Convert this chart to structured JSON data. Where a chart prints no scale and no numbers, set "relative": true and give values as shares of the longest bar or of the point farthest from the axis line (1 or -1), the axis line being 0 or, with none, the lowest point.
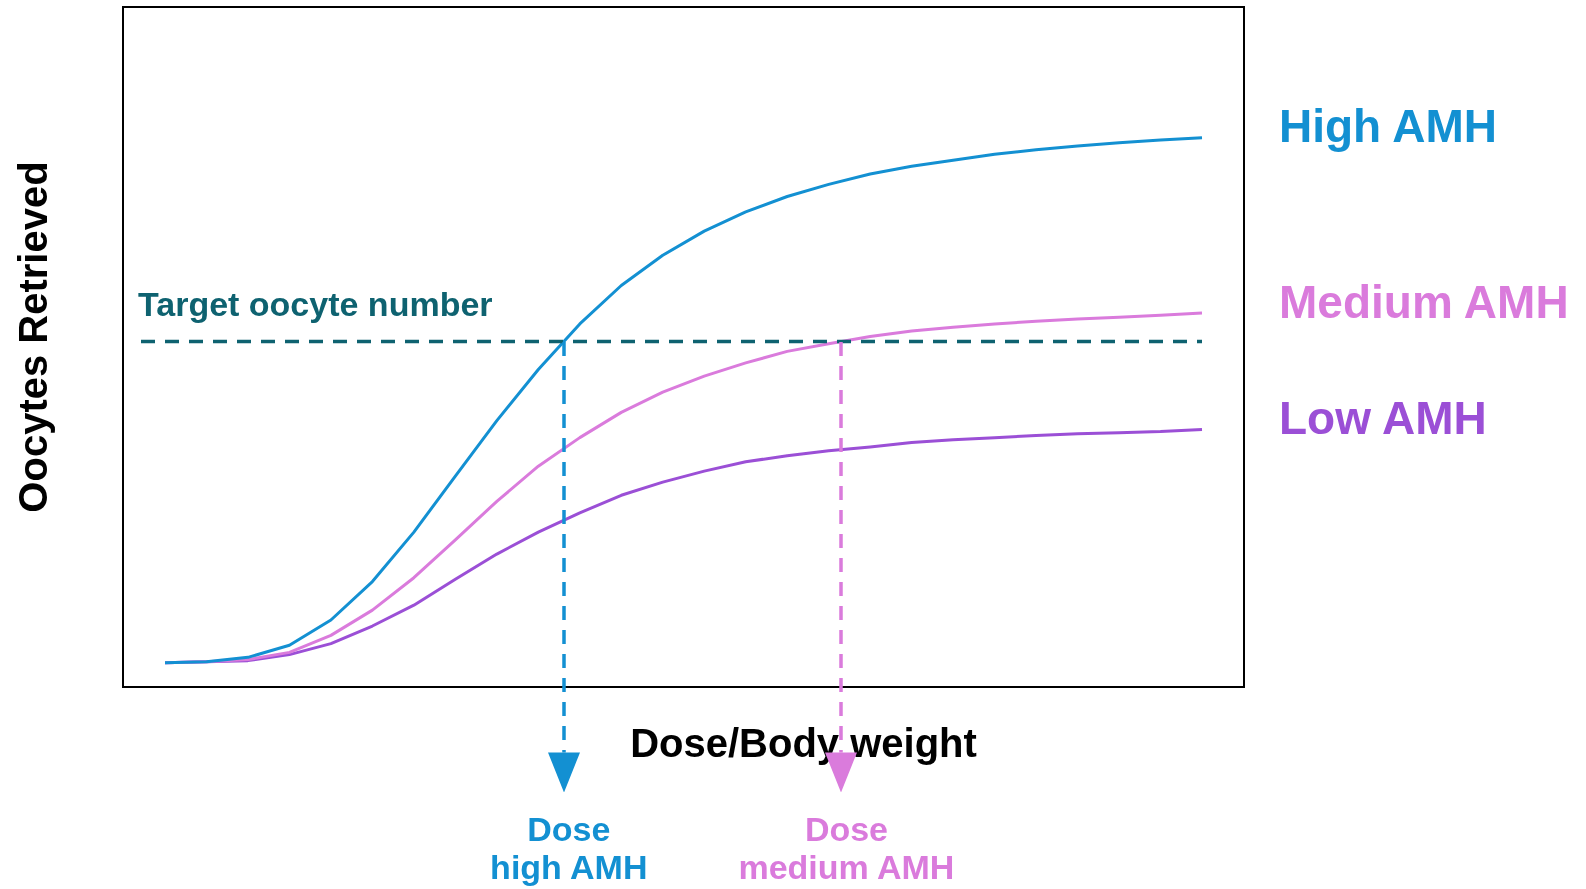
{
  "chart_data": {
    "type": "line",
    "relative": true,
    "xlabel": "Dose/Body weight",
    "ylabel": "Oocytes Retrieved",
    "legend": false,
    "grid": false,
    "marker": "none",
    "categories": [
      null,
      null,
      null,
      null,
      null,
      null,
      null,
      null,
      null,
      null,
      null,
      null,
      null,
      null,
      null,
      null,
      null,
      null,
      null,
      null,
      null,
      null,
      null,
      null,
      null,
      null
    ],
    "series": [
      {
        "name": "High AMH",
        "color": "#1390d2",
        "values": [
          0.044,
          0.046,
          0.054,
          0.076,
          0.122,
          0.192,
          0.282,
          0.384,
          0.485,
          0.578,
          0.661,
          0.731,
          0.786,
          0.83,
          0.865,
          0.893,
          0.915,
          0.934,
          0.948,
          0.959,
          0.97,
          0.978,
          0.985,
          0.991,
          0.996,
          1
        ]
      },
      {
        "name": "Medium AMH",
        "color": "#da7bdc",
        "values": [
          0.044,
          0.046,
          0.05,
          0.063,
          0.094,
          0.14,
          0.199,
          0.268,
          0.338,
          0.402,
          0.454,
          0.5,
          0.537,
          0.566,
          0.59,
          0.611,
          0.625,
          0.638,
          0.648,
          0.655,
          0.661,
          0.666,
          0.67,
          0.673,
          0.677,
          0.681
        ]
      },
      {
        "name": "Low AMH",
        "color": "#9b4fd6",
        "values": [
          0.044,
          0.046,
          0.048,
          0.059,
          0.079,
          0.111,
          0.149,
          0.196,
          0.242,
          0.282,
          0.317,
          0.349,
          0.373,
          0.393,
          0.41,
          0.421,
          0.43,
          0.437,
          0.445,
          0.45,
          0.454,
          0.458,
          0.461,
          0.463,
          0.465,
          0.469
        ]
      }
    ],
    "ref_lines": [
      {
        "axis": "y",
        "value": 0.629,
        "label": "Target oocyte number",
        "color": "#0e6270",
        "line_style": "dashed"
      }
    ],
    "annotations": [
      "Dose\nhigh AMH",
      "Dose\nmedium AMH"
    ]
  }
}
